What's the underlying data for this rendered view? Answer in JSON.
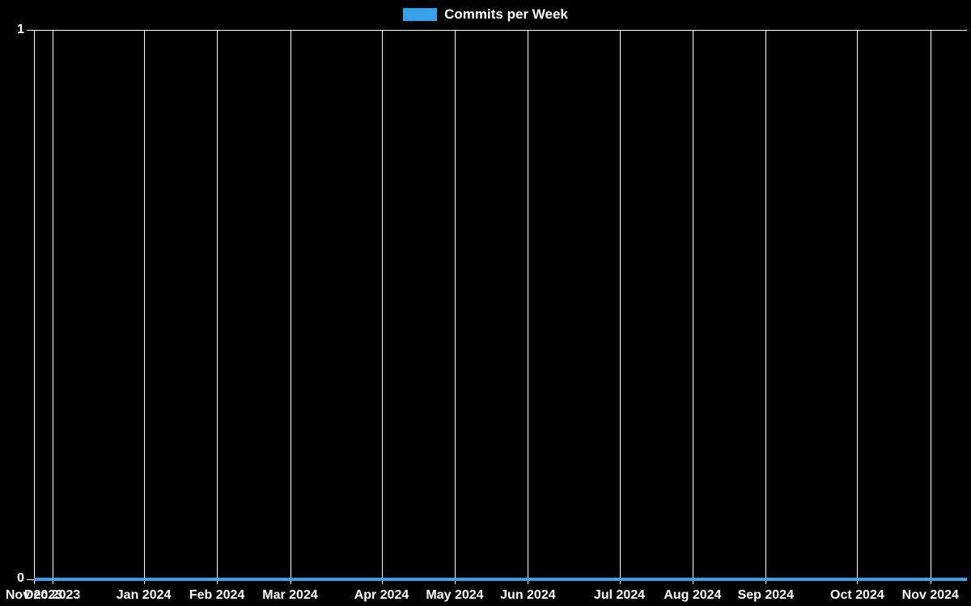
{
  "app": {
    "background_color": "#000000"
  },
  "legend": {
    "label": "Commits per Week",
    "swatch_color": "#36a2eb",
    "position": "top"
  },
  "chart_data": {
    "type": "line",
    "title": "Commits per Week",
    "legend_entries": [
      "Commits per Week"
    ],
    "legend_position": "top",
    "grid": "vertical-monthly-only",
    "grid_color": "#ffffff",
    "text_color": "#ffffff",
    "background_color": "#000000",
    "ylim": [
      0,
      1
    ],
    "y_tick_labels": [
      "0",
      "1"
    ],
    "x_tick_labels": [
      "Nov 2023",
      "Dec 2023",
      "Jan 2024",
      "Feb 2024",
      "Mar 2024",
      "Apr 2024",
      "May 2024",
      "Jun 2024",
      "Jul 2024",
      "Aug 2024",
      "Sep 2024",
      "Oct 2024",
      "Nov 2024"
    ],
    "x_tick_week_positions": [
      0,
      1,
      6,
      10,
      14,
      19,
      23,
      27,
      32,
      36,
      40,
      45,
      49
    ],
    "total_weeks": 51,
    "x_unit": "week",
    "series": [
      {
        "name": "Commits per Week",
        "color": "#36a2eb",
        "line_width": 4,
        "values": [
          0,
          0,
          0,
          0,
          0,
          0,
          0,
          0,
          0,
          0,
          0,
          0,
          0,
          0,
          0,
          0,
          0,
          0,
          0,
          0,
          0,
          0,
          0,
          0,
          0,
          0,
          0,
          0,
          0,
          0,
          0,
          0,
          0,
          0,
          0,
          0,
          0,
          0,
          0,
          0,
          0,
          0,
          0,
          0,
          0,
          0,
          0,
          0,
          0,
          0,
          0,
          0
        ]
      }
    ]
  }
}
